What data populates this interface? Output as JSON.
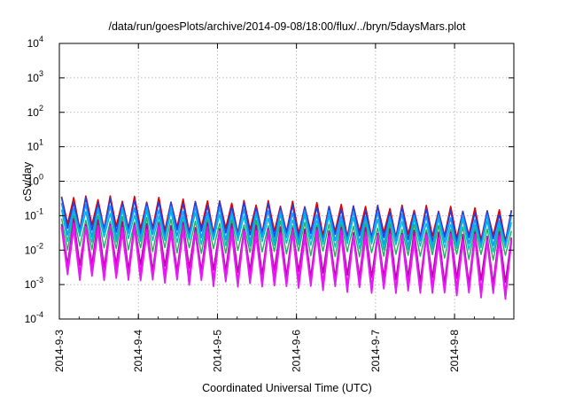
{
  "chart_data": {
    "type": "line",
    "title": "/data/run/goesPlots/archive/2014-09-08/18:00/flux/../bryn/5daysMars.plot",
    "xlabel": "Coordinated Universal Time (UTC)",
    "ylabel": "cSv/day",
    "xlim": [
      "2014-09-03 00:00",
      "2014-09-08 18:00"
    ],
    "ylim": [
      0.0001,
      10000
    ],
    "yscale": "log",
    "grid": true,
    "x_ticks": [
      "2014-9-3",
      "2014-9-4",
      "2014-9-5",
      "2014-9-6",
      "2014-9-7",
      "2014-9-8"
    ],
    "y_ticks": [
      {
        "value": 0.0001,
        "base": "10",
        "exp": "-4"
      },
      {
        "value": 0.001,
        "base": "10",
        "exp": "-3"
      },
      {
        "value": 0.01,
        "base": "10",
        "exp": "-2"
      },
      {
        "value": 0.1,
        "base": "10",
        "exp": "-1"
      },
      {
        "value": 1,
        "base": "10",
        "exp": "0"
      },
      {
        "value": 10,
        "base": "10",
        "exp": "1"
      },
      {
        "value": 100,
        "base": "10",
        "exp": "2"
      },
      {
        "value": 1000,
        "base": "10",
        "exp": "3"
      },
      {
        "value": 10000,
        "base": "10",
        "exp": "4"
      }
    ],
    "pattern": {
      "peaks_per_day": 6.5,
      "peak_start_phase": 0.36
    },
    "series": [
      {
        "color": "#e00000",
        "peak_start": 0.36,
        "peak_end": 0.14,
        "trough_start": 0.05,
        "trough_end": 0.022,
        "width": 1.6
      },
      {
        "color": "#2040e0",
        "peak_start": 0.3,
        "peak_end": 0.12,
        "trough_start": 0.04,
        "trough_end": 0.018,
        "width": 1.6
      },
      {
        "color": "#1898ff",
        "peak_start": 0.2,
        "peak_end": 0.085,
        "trough_start": 0.03,
        "trough_end": 0.013,
        "width": 1.6
      },
      {
        "color": "#00b8d8",
        "peak_start": 0.14,
        "peak_end": 0.06,
        "trough_start": 0.022,
        "trough_end": 0.01,
        "width": 1.4
      },
      {
        "color": "#20b060",
        "peak_start": 0.09,
        "peak_end": 0.04,
        "trough_start": 0.012,
        "trough_end": 0.006,
        "width": 1.4
      },
      {
        "color": "#b000a0",
        "peak_start": 0.07,
        "peak_end": 0.028,
        "trough_start": 0.004,
        "trough_end": 0.0011,
        "width": 1.6
      },
      {
        "color": "#ff00ff",
        "peak_start": 0.055,
        "peak_end": 0.022,
        "trough_start": 0.0025,
        "trough_end": 0.0006,
        "width": 1.8
      },
      {
        "color": "#e020f0",
        "peak_start": 0.045,
        "peak_end": 0.018,
        "trough_start": 0.0017,
        "trough_end": 0.00045,
        "width": 1.8
      }
    ]
  }
}
